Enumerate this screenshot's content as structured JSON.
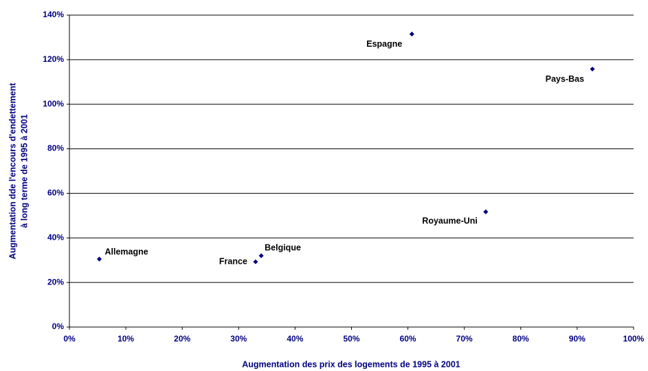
{
  "chart_data": {
    "type": "scatter",
    "x_label": "Augmentation des prix des logements de 1995 à 2001",
    "y_label": [
      "Augmentation dde l'encours d'endettement",
      "à long terme de 1995 à 2001"
    ],
    "point_labels": [
      "Allemagne",
      "France",
      "Belgique",
      "Espagne",
      "Royaume-Uni",
      "Pays-Bas"
    ],
    "x": [
      5.3,
      33,
      34,
      60.7,
      73.8,
      92.7
    ],
    "values": [
      30.5,
      29.3,
      32,
      131.5,
      51.7,
      115.8
    ],
    "color": "#000080",
    "xlim": [
      0,
      100
    ],
    "ylim": [
      0,
      140
    ],
    "xticks": [
      {
        "value": 0,
        "label": "0%"
      },
      {
        "value": 10,
        "label": "10%"
      },
      {
        "value": 20,
        "label": "20%"
      },
      {
        "value": 30,
        "label": "30%"
      },
      {
        "value": 40,
        "label": "40%"
      },
      {
        "value": 50,
        "label": "50%"
      },
      {
        "value": 60,
        "label": "60%"
      },
      {
        "value": 70,
        "label": "70%"
      },
      {
        "value": 80,
        "label": "80%"
      },
      {
        "value": 90,
        "label": "90%"
      },
      {
        "value": 100,
        "label": "100%"
      }
    ],
    "yticks": [
      {
        "value": 0,
        "label": "0%"
      },
      {
        "value": 20,
        "label": "20%"
      },
      {
        "value": 40,
        "label": "40%"
      },
      {
        "value": 60,
        "label": "60%"
      },
      {
        "value": 80,
        "label": "80%"
      },
      {
        "value": 100,
        "label": "100%"
      },
      {
        "value": 120,
        "label": "120%"
      },
      {
        "value": 140,
        "label": "140%"
      }
    ],
    "grid": true
  }
}
